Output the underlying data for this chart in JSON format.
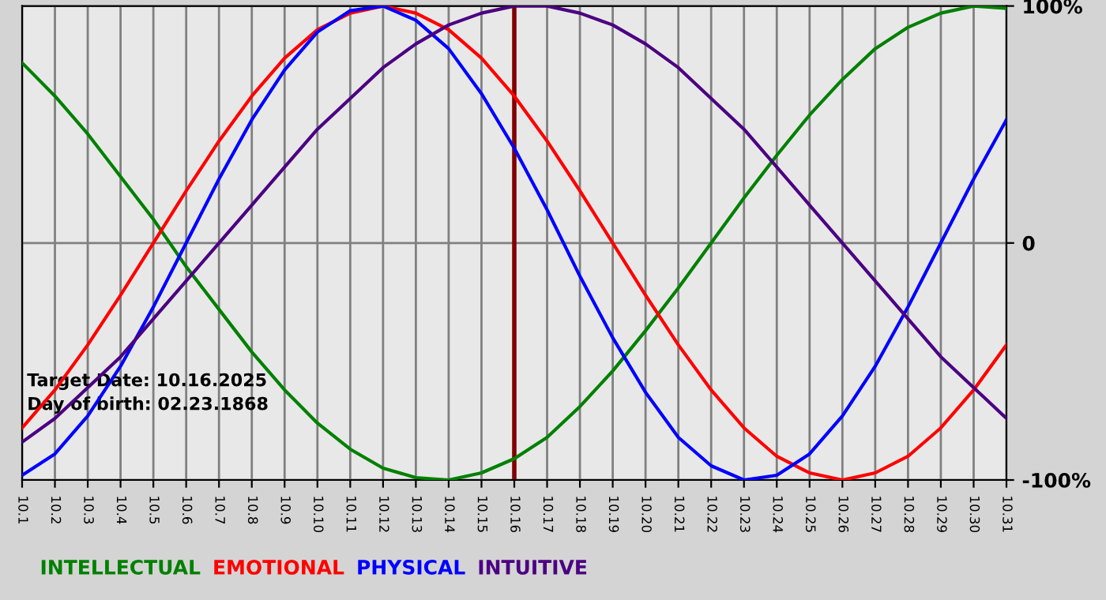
{
  "chart_data": {
    "type": "line",
    "categories": [
      "10.1",
      "10.2",
      "10.3",
      "10.4",
      "10.5",
      "10.6",
      "10.7",
      "10.8",
      "10.9",
      "10.10",
      "10.11",
      "10.12",
      "10.13",
      "10.14",
      "10.15",
      "10.16",
      "10.17",
      "10.18",
      "10.19",
      "10.20",
      "10.21",
      "10.22",
      "10.23",
      "10.24",
      "10.25",
      "10.26",
      "10.27",
      "10.28",
      "10.29",
      "10.30",
      "10.31"
    ],
    "series": [
      {
        "name": "INTELLECTUAL",
        "color": "#008000",
        "values": [
          76,
          62,
          46,
          28,
          10,
          -10,
          -28,
          -46,
          -62,
          -76,
          -87,
          -95,
          -99,
          -100,
          -97,
          -91,
          -82,
          -69,
          -54,
          -37,
          -19,
          0,
          19,
          37,
          54,
          69,
          82,
          91,
          97,
          100,
          99
        ]
      },
      {
        "name": "EMOTIONAL",
        "color": "#ff0000",
        "values": [
          -78,
          -62,
          -43,
          -22,
          0,
          22,
          43,
          62,
          78,
          90,
          97,
          100,
          97,
          90,
          78,
          62,
          43,
          22,
          0,
          -22,
          -43,
          -62,
          -78,
          -90,
          -97,
          -100,
          -97,
          -90,
          -78,
          -62,
          -43
        ]
      },
      {
        "name": "PHYSICAL",
        "color": "#0000ff",
        "values": [
          -98,
          -89,
          -73,
          -52,
          -27,
          0,
          27,
          52,
          73,
          89,
          98,
          100,
          94,
          82,
          63,
          40,
          14,
          -14,
          -40,
          -63,
          -82,
          -94,
          -100,
          -98,
          -89,
          -73,
          -52,
          -27,
          0,
          27,
          52
        ]
      },
      {
        "name": "INTUITIVE",
        "color": "#4b0082",
        "values": [
          -84,
          -74,
          -61,
          -48,
          -32,
          -16,
          0,
          16,
          32,
          48,
          61,
          74,
          84,
          92,
          97,
          100,
          100,
          97,
          92,
          84,
          74,
          61,
          48,
          32,
          16,
          0,
          -16,
          -32,
          -48,
          -61,
          -74
        ]
      }
    ],
    "ylim": [
      -100,
      100
    ],
    "yticks": [
      {
        "value": 100,
        "label": "100%"
      },
      0,
      {
        "value": -100,
        "label": "-100%"
      }
    ],
    "grid": true,
    "legend": "bottom",
    "ref_lines": [
      {
        "axis": "x",
        "value": "10.16",
        "color": "#800000"
      }
    ],
    "annotations": [
      "Target Date: 10.16.2025",
      "Day of birth: 02.23.1868"
    ]
  }
}
